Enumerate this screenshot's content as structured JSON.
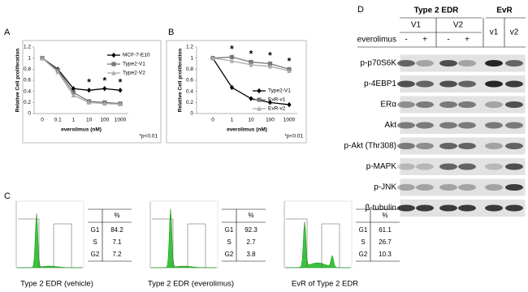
{
  "chart_data": [
    {
      "type": "line",
      "panel_label": "A",
      "x_label": "everolimus (nM)",
      "y_label": "Relative Cell proliferation",
      "categories": [
        "0",
        "0.1",
        "1",
        "10",
        "100",
        "1000"
      ],
      "ylim": [
        0,
        1.2
      ],
      "yticks": [
        0,
        0.2,
        0.4,
        0.6,
        0.8,
        1,
        1.2
      ],
      "legend_position": "upper right",
      "series": [
        {
          "name": "MCF-7-E10",
          "color": "#000000",
          "marker": "diamond",
          "values": [
            1.0,
            0.8,
            0.45,
            0.42,
            0.45,
            0.42
          ]
        },
        {
          "name": "Type2-V1",
          "color": "#777777",
          "marker": "square",
          "values": [
            1.0,
            0.78,
            0.38,
            0.22,
            0.2,
            0.18
          ]
        },
        {
          "name": "Type2-V2",
          "color": "#aaaaaa",
          "marker": "triangle",
          "values": [
            1.0,
            0.75,
            0.33,
            0.2,
            0.18,
            0.17
          ]
        }
      ],
      "significance": [
        {
          "text": "*",
          "category": 3
        },
        {
          "text": "*",
          "category": 4
        },
        {
          "text": "*",
          "category": 5
        }
      ],
      "footnote": "*p<0.01"
    },
    {
      "type": "line",
      "panel_label": "B",
      "x_label": "everolimus (nM)",
      "y_label": "Relative Cell proliferation",
      "categories": [
        "0",
        "1",
        "10",
        "100",
        "1000"
      ],
      "ylim": [
        0,
        1.2
      ],
      "yticks": [
        0,
        0.2,
        0.4,
        0.6,
        0.8,
        1,
        1.2
      ],
      "legend_position": "lower right",
      "series": [
        {
          "name": "Type2-V1",
          "color": "#000000",
          "marker": "diamond",
          "values": [
            1.0,
            0.47,
            0.27,
            0.2,
            0.16
          ]
        },
        {
          "name": "EvR-v1",
          "color": "#777777",
          "marker": "square",
          "values": [
            1.0,
            1.02,
            0.93,
            0.9,
            0.8
          ]
        },
        {
          "name": "EvR-v2",
          "color": "#aaaaaa",
          "marker": "triangle",
          "values": [
            1.0,
            0.95,
            0.88,
            0.85,
            0.77
          ]
        }
      ],
      "significance": [
        {
          "text": "*",
          "category": 1
        },
        {
          "text": "*",
          "category": 2
        },
        {
          "text": "*",
          "category": 3
        },
        {
          "text": "*",
          "category": 4
        }
      ],
      "footnote": "*p<0.01"
    }
  ],
  "panel_c": {
    "label": "C",
    "plots": [
      {
        "caption": "Type 2 EDR (vehicle)",
        "header": "%",
        "rows": [
          [
            "G1",
            84.2
          ],
          [
            "S",
            7.1
          ],
          [
            "G2",
            7.2
          ]
        ]
      },
      {
        "caption": "Type 2 EDR (everolimus)",
        "header": "%",
        "rows": [
          [
            "G1",
            92.3
          ],
          [
            "S",
            2.7
          ],
          [
            "G2",
            3.8
          ]
        ]
      },
      {
        "caption": "EvR of Type 2 EDR",
        "header": "%",
        "rows": [
          [
            "G1",
            61.1
          ],
          [
            "S",
            26.7
          ],
          [
            "G2",
            10.3
          ]
        ]
      }
    ]
  },
  "panel_d": {
    "label": "D",
    "group_headers": [
      "Type 2 EDR",
      "EvR"
    ],
    "lane_headers": [
      "V1",
      "V2",
      "v1",
      "v2"
    ],
    "treatment_label": "everolimus",
    "treatments": [
      "-",
      "+",
      "-",
      "+"
    ],
    "rows": [
      "p-p70S6K",
      "p-4EBP1",
      "ERα",
      "Akt",
      "p-Akt (Thr308)",
      "p-MAPK",
      "p-JNK",
      "β-tubulin"
    ]
  }
}
